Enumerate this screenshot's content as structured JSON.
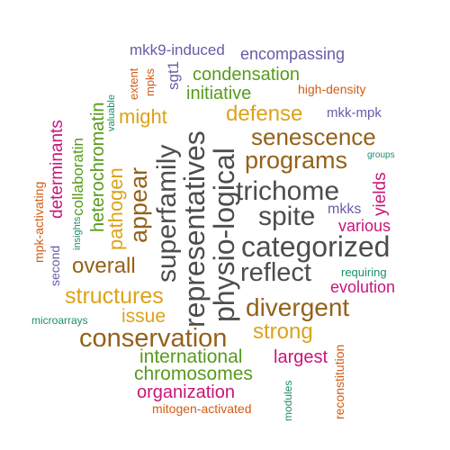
{
  "palette": {
    "gray": "#4d4d4d",
    "brown": "#946118",
    "green": "#589a1c",
    "gold": "#dca31a",
    "purple": "#6a5ba8",
    "magenta": "#c8157a",
    "orange": "#d35b12",
    "teal": "#1c8e6c"
  },
  "words": {
    "mkk9_induced": "mkk9-induced",
    "encompassing": "encompassing",
    "extent": "extent",
    "mpks": "mpks",
    "sgt1": "sgt1",
    "condensation": "condensation",
    "initiative": "initiative",
    "high_density": "high-density",
    "valuable": "valuable",
    "might": "might",
    "defense": "defense",
    "mkk_mpk": "mkk-mpk",
    "determinants": "determinants",
    "collaboratin": "collaboratin",
    "heterochromatin": "heterochromatin",
    "senescence": "senescence",
    "groups": "groups",
    "programs": "programs",
    "mpk_activating": "mpk-activating",
    "pathogen": "pathogen",
    "appear": "appear",
    "superfamily": "superfamily",
    "representatives": "representatives",
    "physio_logical": "physio-logical",
    "trichome": "trichome",
    "insights": "insights",
    "spite": "spite",
    "mkks": "mkks",
    "yields": "yields",
    "various": "various",
    "second": "second",
    "categorized": "categorized",
    "overall": "overall",
    "reflect": "reflect",
    "requiring": "requiring",
    "evolution": "evolution",
    "structures": "structures",
    "divergent": "divergent",
    "microarrays": "microarrays",
    "issue": "issue",
    "conservation": "conservation",
    "strong": "strong",
    "international": "international",
    "largest": "largest",
    "reconstitution": "reconstitution",
    "chromosomes": "chromosomes",
    "organization": "organization",
    "modules": "modules",
    "mitogen_activated": "mitogen-activated"
  }
}
